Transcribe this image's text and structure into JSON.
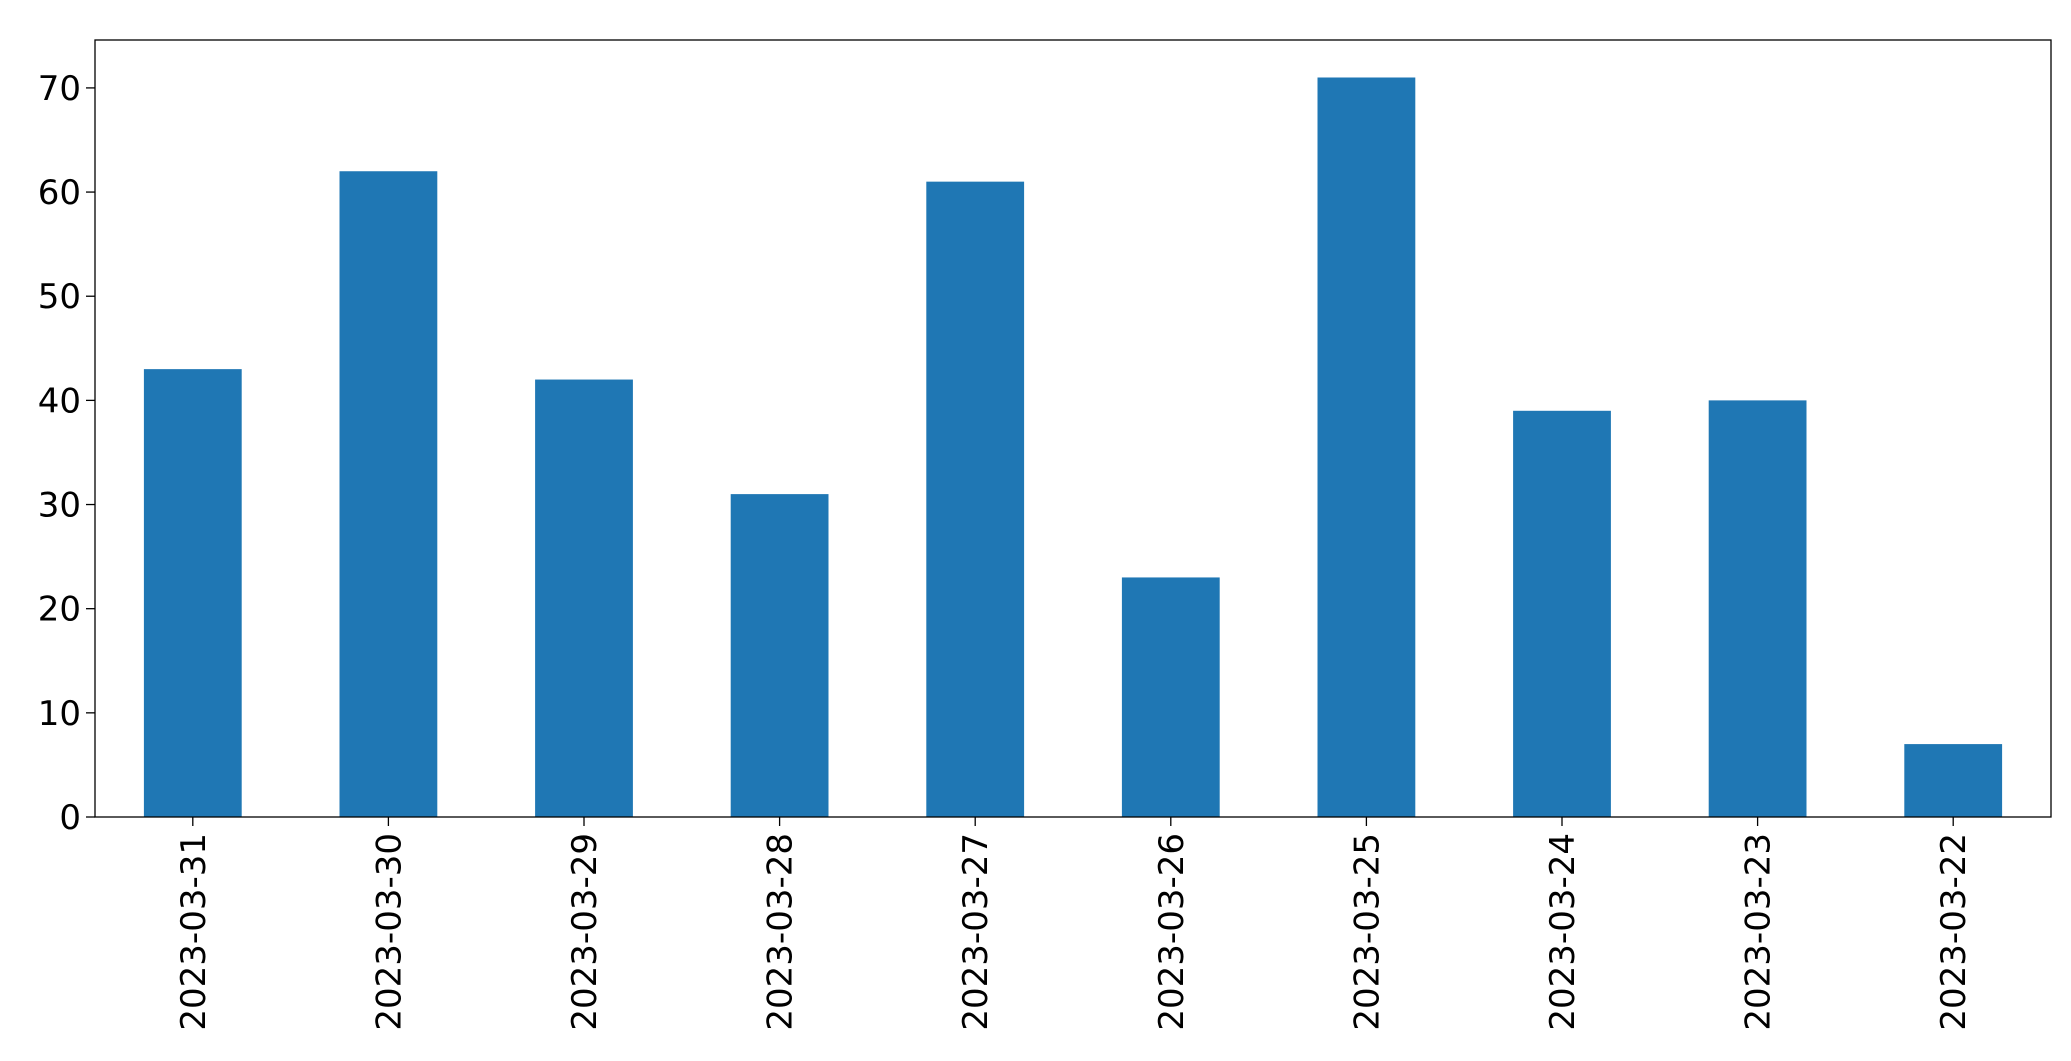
{
  "chart_data": {
    "type": "bar",
    "categories": [
      "2023-03-31",
      "2023-03-30",
      "2023-03-29",
      "2023-03-28",
      "2023-03-27",
      "2023-03-26",
      "2023-03-25",
      "2023-03-24",
      "2023-03-23",
      "2023-03-22"
    ],
    "values": [
      43,
      62,
      42,
      31,
      61,
      23,
      71,
      39,
      40,
      7
    ],
    "color": "#1f77b4",
    "ylim": [
      0,
      74.6
    ],
    "yticks": [
      0,
      10,
      20,
      30,
      40,
      50,
      60,
      70
    ],
    "grid": false
  }
}
